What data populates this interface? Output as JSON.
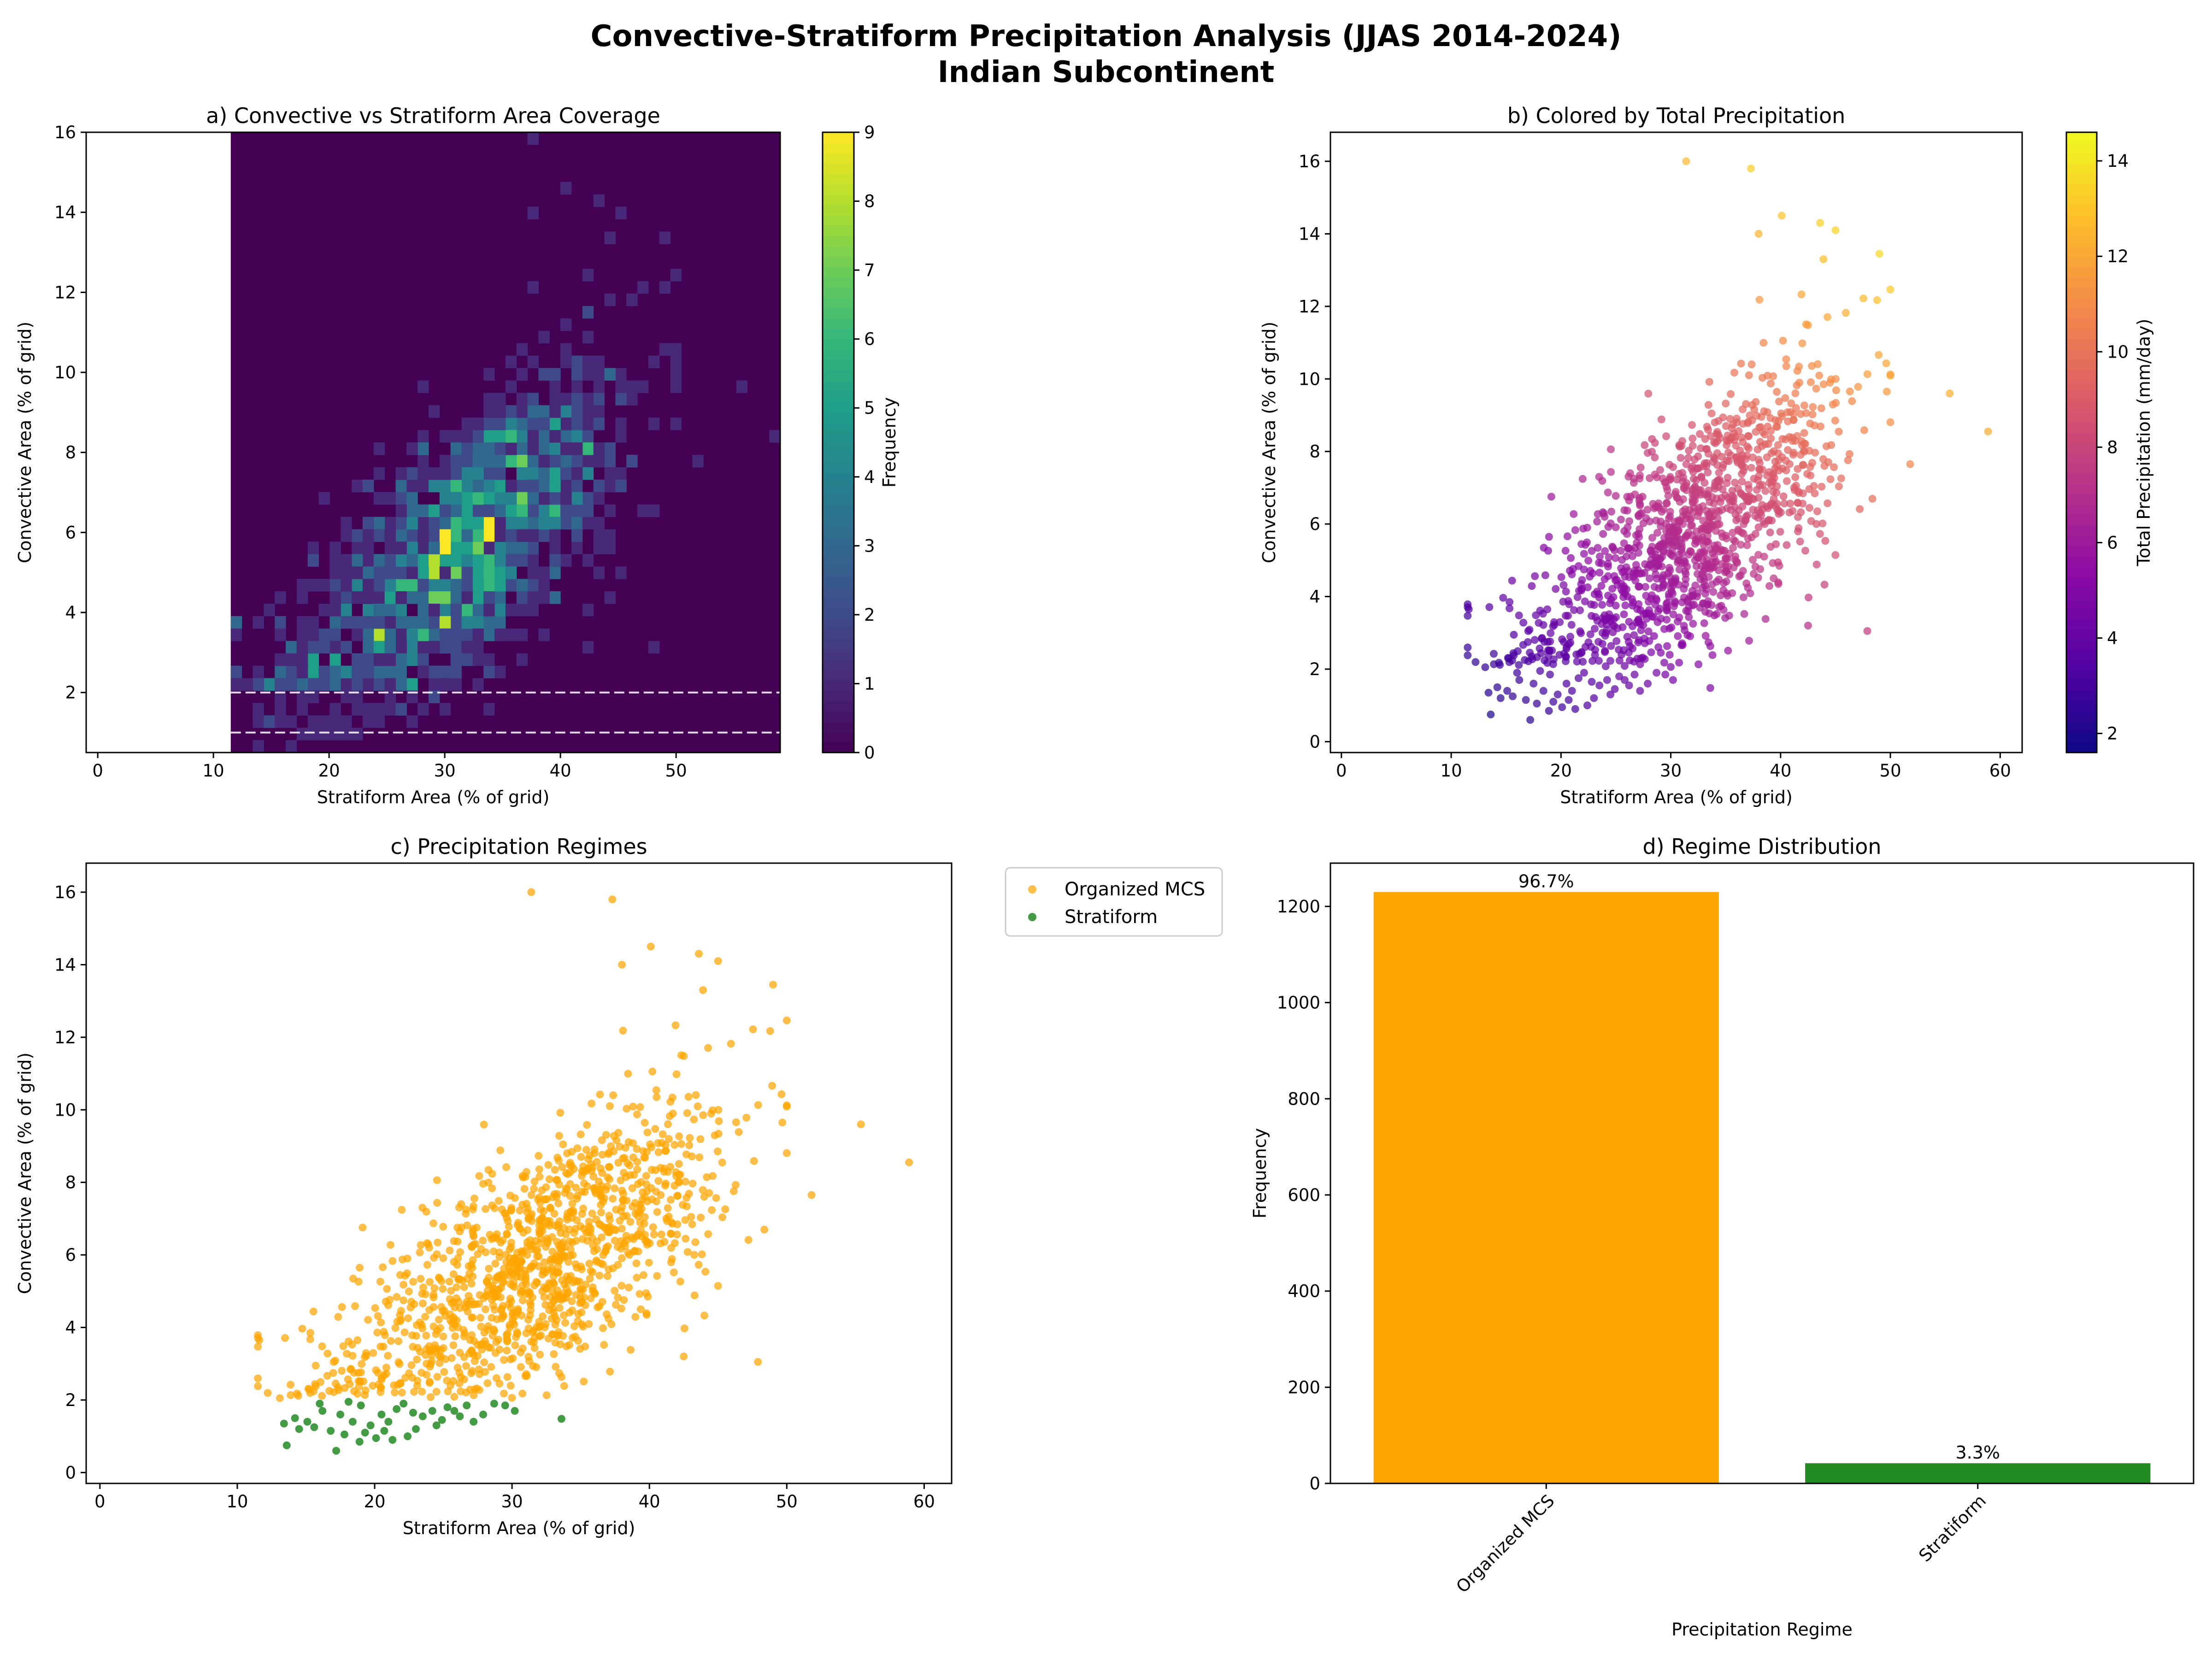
{
  "figure": {
    "title_line1": "Convective-Stratiform Precipitation Analysis (JJAS 2014-2024)",
    "title_line2": "Indian Subcontinent"
  },
  "colors": {
    "organized_mcs": "#ffa500",
    "stratiform": "#228b22",
    "threshold_line": "#ffffff"
  },
  "chart_data": [
    {
      "id": "a",
      "type": "heatmap",
      "title": "a) Convective vs Stratiform Area Coverage",
      "xlabel": "Stratiform Area (% of grid)",
      "ylabel": "Convective Area (% of grid)",
      "colorbar_label": "Frequency",
      "colormap": "viridis",
      "xlim": [
        -1,
        59
      ],
      "ylim": [
        0.5,
        16
      ],
      "xticks": [
        0,
        10,
        20,
        30,
        40,
        50
      ],
      "yticks": [
        2,
        4,
        6,
        8,
        10,
        12,
        14,
        16
      ],
      "colorbar_ticks": [
        0,
        1,
        2,
        3,
        4,
        5,
        6,
        7,
        8,
        9
      ],
      "colorbar_range": [
        0,
        9
      ],
      "data_extent_x": [
        11.5,
        59
      ],
      "threshold_lines_y": [
        1.0,
        2.0
      ],
      "grid": false
    },
    {
      "id": "b",
      "type": "scatter",
      "title": "b) Colored by Total Precipitation",
      "xlabel": "Stratiform Area (% of grid)",
      "ylabel": "Convective Area (% of grid)",
      "colorbar_label": "Total Precipitation (mm/day)",
      "colormap": "plasma",
      "xlim": [
        -1,
        62
      ],
      "ylim": [
        -0.3,
        16.8
      ],
      "xticks": [
        0,
        10,
        20,
        30,
        40,
        50,
        60
      ],
      "yticks": [
        0,
        2,
        4,
        6,
        8,
        10,
        12,
        14,
        16
      ],
      "colorbar_ticks": [
        2,
        4,
        6,
        8,
        10,
        12,
        14
      ],
      "colorbar_range": [
        1.6,
        14.6
      ],
      "grid": false
    },
    {
      "id": "c",
      "type": "scatter",
      "title": "c) Precipitation Regimes",
      "xlabel": "Stratiform Area (% of grid)",
      "ylabel": "Convective Area (% of grid)",
      "xlim": [
        -1,
        62
      ],
      "ylim": [
        -0.3,
        16.8
      ],
      "xticks": [
        0,
        10,
        20,
        30,
        40,
        50,
        60
      ],
      "yticks": [
        0,
        2,
        4,
        6,
        8,
        10,
        12,
        14,
        16
      ],
      "legend": [
        "Organized MCS",
        "Stratiform"
      ],
      "legend_position": "outside upper-right",
      "grid": false
    },
    {
      "id": "d",
      "type": "bar",
      "title": "d) Regime Distribution",
      "xlabel": "Precipitation Regime",
      "ylabel": "Frequency",
      "categories": [
        "Organized MCS",
        "Stratiform"
      ],
      "values": [
        1230,
        42
      ],
      "labels": [
        "96.7%",
        "3.3%"
      ],
      "ylim": [
        0,
        1290
      ],
      "yticks": [
        0,
        200,
        400,
        600,
        800,
        1000,
        1200
      ],
      "grid": false
    }
  ],
  "scatter_points": {
    "stratiform": [
      [
        13.6,
        0.75
      ],
      [
        17.2,
        0.6
      ],
      [
        20.1,
        0.95
      ],
      [
        22.4,
        1.0
      ],
      [
        13.4,
        1.35
      ],
      [
        14.5,
        1.2
      ],
      [
        15.6,
        1.25
      ],
      [
        16.2,
        1.7
      ],
      [
        17.8,
        1.05
      ],
      [
        18.4,
        1.4
      ],
      [
        19.0,
        1.85
      ],
      [
        20.5,
        1.6
      ],
      [
        21.6,
        1.75
      ],
      [
        22.1,
        1.9
      ],
      [
        23.5,
        1.55
      ],
      [
        24.2,
        1.7
      ],
      [
        24.9,
        1.45
      ],
      [
        25.3,
        1.8
      ],
      [
        26.7,
        1.85
      ],
      [
        27.9,
        1.6
      ],
      [
        28.7,
        1.9
      ],
      [
        29.5,
        1.85
      ],
      [
        30.2,
        1.7
      ],
      [
        33.6,
        1.48
      ],
      [
        18.1,
        1.95
      ],
      [
        19.7,
        1.3
      ],
      [
        21.0,
        1.4
      ],
      [
        23.0,
        1.2
      ],
      [
        14.2,
        1.5
      ],
      [
        16.8,
        1.15
      ],
      [
        18.9,
        0.85
      ],
      [
        20.7,
        1.15
      ],
      [
        22.8,
        1.65
      ],
      [
        25.8,
        1.7
      ],
      [
        26.2,
        1.55
      ],
      [
        17.5,
        1.6
      ],
      [
        15.1,
        1.4
      ],
      [
        19.3,
        1.1
      ],
      [
        21.3,
        0.9
      ],
      [
        24.5,
        1.3
      ],
      [
        27.2,
        1.4
      ],
      [
        16.0,
        1.9
      ]
    ]
  }
}
